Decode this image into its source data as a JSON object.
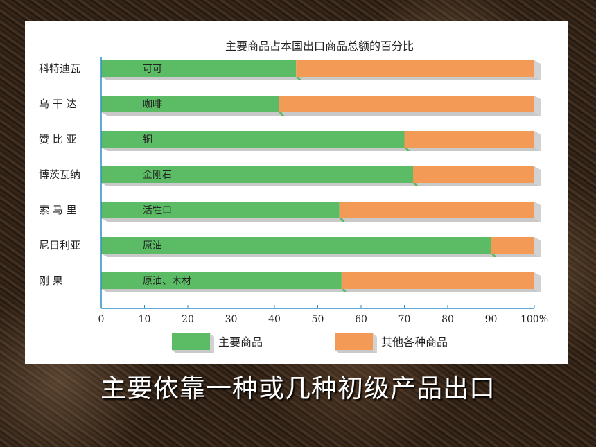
{
  "caption": "主要依靠一种或几种初级产品出口",
  "colors": {
    "main": "#5cbc65",
    "other": "#f39a56",
    "axis": "#2a8dc9"
  },
  "chart_data": {
    "type": "bar",
    "stacked": true,
    "orientation": "horizontal",
    "title": "主要商品占本国出口商品总额的百分比",
    "categories": [
      "科特迪瓦",
      "乌 干 达",
      "赞 比 亚",
      "博茨瓦纳",
      "索 马 里",
      "尼日利亚",
      "刚 果"
    ],
    "bar_labels": [
      "可可",
      "咖啡",
      "铜",
      "金刚石",
      "活牲口",
      "原油",
      "原油、木材"
    ],
    "series": [
      {
        "name": "主要商品",
        "values": [
          45,
          41,
          70,
          72,
          55,
          90,
          55.5
        ]
      },
      {
        "name": "其他各种商品",
        "values": [
          55,
          59,
          30,
          28,
          45,
          10,
          44.5
        ]
      }
    ],
    "x_ticks": [
      "0",
      "10",
      "20",
      "30",
      "40",
      "50",
      "60",
      "70",
      "80",
      "90",
      "100%"
    ],
    "xlim": [
      0,
      100
    ],
    "legend_position": "bottom"
  }
}
